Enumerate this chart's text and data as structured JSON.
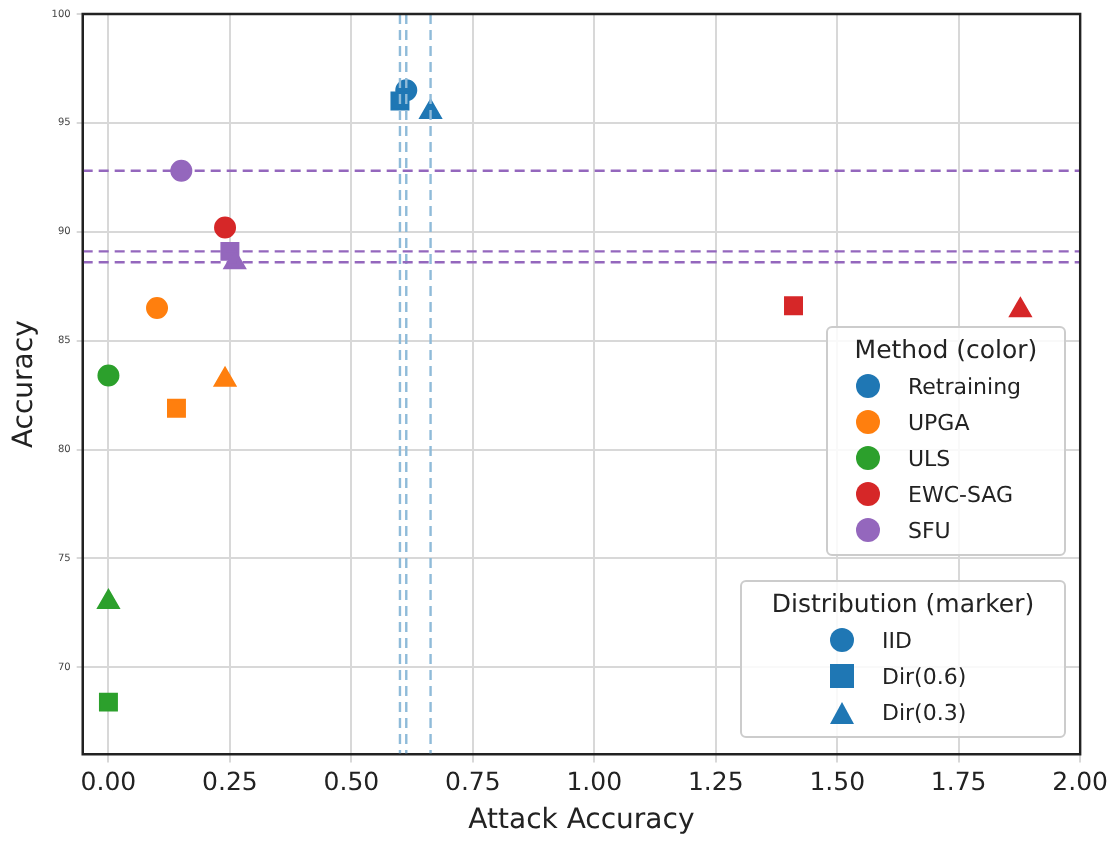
{
  "chart_data": {
    "type": "scatter",
    "xlabel": "Attack Accuracy",
    "ylabel": "Accuracy",
    "legend_title": "Method (color)",
    "xlim": [
      -0.053,
      2.0
    ],
    "ylim": [
      66,
      100
    ],
    "xticks": [
      {
        "value": 0,
        "label": "0.00"
      },
      {
        "value": 0.25,
        "label": "0.25"
      },
      {
        "value": 0.5,
        "label": "0.50"
      },
      {
        "value": 0.75,
        "label": "0.75"
      },
      {
        "value": 1,
        "label": "1.00"
      },
      {
        "value": 1.25,
        "label": "1.25"
      },
      {
        "value": 1.5,
        "label": "1.50"
      },
      {
        "value": 1.75,
        "label": "1.75"
      },
      {
        "value": 2,
        "label": "2.00"
      }
    ],
    "yticks": [
      70,
      75,
      80,
      85,
      90,
      95,
      100
    ],
    "grid": true,
    "legend": "right",
    "marker": [
      "circle",
      "square",
      "triangle"
    ],
    "annotations": [
      "Distribution (marker)",
      "IID",
      "Dir(0.6)",
      "Dir(0.3)"
    ],
    "series": [
      {
        "name": "Retraining",
        "color": "#1f77b4",
        "x": [
          0.613,
          0.6,
          0.663
        ],
        "values": [
          96.5,
          96.0,
          95.5
        ]
      },
      {
        "name": "UPGA",
        "color": "#ff7f0e",
        "x": [
          0.1,
          0.14,
          0.24
        ],
        "values": [
          86.5,
          81.9,
          83.2
        ]
      },
      {
        "name": "ULS",
        "color": "#2ca02c",
        "x": [
          0.0,
          0.0,
          0.0
        ],
        "values": [
          83.4,
          68.4,
          73.0
        ]
      },
      {
        "name": "EWC-SAG",
        "color": "#d62728",
        "x": [
          0.24,
          1.41,
          1.877
        ],
        "values": [
          90.2,
          86.6,
          86.4
        ]
      },
      {
        "name": "SFU",
        "color": "#9467bd",
        "x": [
          0.15,
          0.25,
          0.26
        ],
        "values": [
          92.8,
          89.1,
          88.6
        ]
      }
    ],
    "ref_lines": [
      {
        "axis": "x",
        "value": 0.6,
        "color": "#8fbbd9",
        "line_style": "dashed"
      },
      {
        "axis": "x",
        "value": 0.613,
        "color": "#8fbbd9",
        "line_style": "dashed"
      },
      {
        "axis": "x",
        "value": 0.663,
        "color": "#8fbbd9",
        "line_style": "dashed"
      },
      {
        "axis": "y",
        "value": 92.8,
        "color": "#9467bd",
        "line_style": "dashed"
      },
      {
        "axis": "y",
        "value": 89.1,
        "color": "#9467bd",
        "line_style": "dashed"
      },
      {
        "axis": "y",
        "value": 88.6,
        "color": "#9467bd",
        "line_style": "dashed"
      }
    ]
  }
}
